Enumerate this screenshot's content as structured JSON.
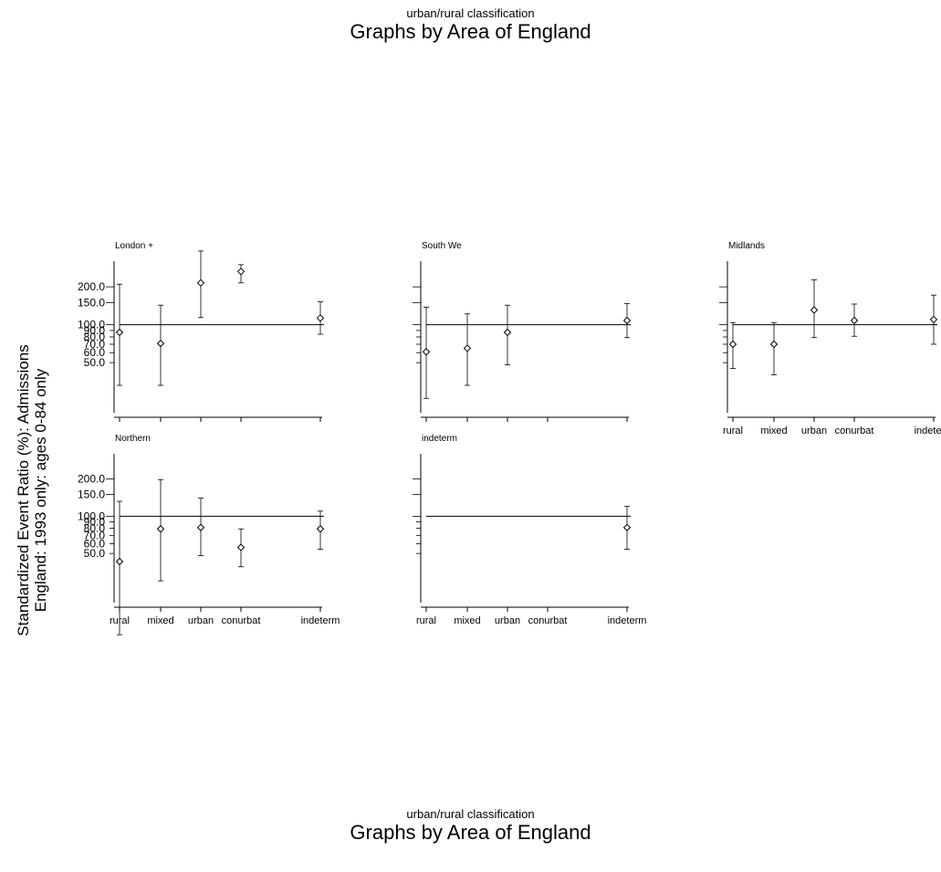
{
  "header": {
    "subtitle": "urban/rural classification",
    "title": "Graphs by Area of England"
  },
  "footer": {
    "subtitle": "urban/rural classification",
    "title": "Graphs by Area of England"
  },
  "y_axis": {
    "line1": "Standardized Event Ratio (%): Admissions",
    "line2": "England: 1993 only: ages 0-84 only"
  },
  "chart_data": {
    "type": "scatter",
    "subtype": "point-with-error-bars",
    "log_scale_y": true,
    "reference_line": 100,
    "ylim": [
      20,
      320
    ],
    "categories": [
      "rural",
      "mixed",
      "urban",
      "conurbat",
      "indeterm"
    ],
    "y_tick_labels": [
      "200.0",
      "150.0",
      "100.0",
      "90.0",
      "80.0",
      "70.0",
      "60.0",
      "50.0"
    ],
    "y_tick_values": [
      200,
      150,
      100,
      90,
      80,
      70,
      60,
      50
    ],
    "panels": [
      {
        "name": "London +",
        "points": [
          {
            "category": "rural",
            "value": 87,
            "low": 33,
            "high": 210
          },
          {
            "category": "mixed",
            "value": 71,
            "low": 33,
            "high": 143
          },
          {
            "category": "urban",
            "value": 215,
            "low": 114,
            "high": 385
          },
          {
            "category": "conurbat",
            "value": 265,
            "low": 215,
            "high": 300
          },
          {
            "category": "indeterm",
            "value": 113,
            "low": 84,
            "high": 152
          }
        ]
      },
      {
        "name": "South We",
        "points": [
          {
            "category": "rural",
            "value": 61,
            "low": 26,
            "high": 138
          },
          {
            "category": "mixed",
            "value": 65,
            "low": 33,
            "high": 122
          },
          {
            "category": "urban",
            "value": 87,
            "low": 48,
            "high": 143
          },
          {
            "category": "indeterm",
            "value": 108,
            "low": 79,
            "high": 147
          }
        ]
      },
      {
        "name": "Midlands",
        "points": [
          {
            "category": "rural",
            "value": 70,
            "low": 45,
            "high": 104
          },
          {
            "category": "mixed",
            "value": 70,
            "low": 40,
            "high": 104
          },
          {
            "category": "urban",
            "value": 131,
            "low": 79,
            "high": 227
          },
          {
            "category": "conurbat",
            "value": 108,
            "low": 81,
            "high": 146
          },
          {
            "category": "indeterm",
            "value": 110,
            "low": 70,
            "high": 172
          }
        ]
      },
      {
        "name": "Northern",
        "points": [
          {
            "category": "rural",
            "value": 43,
            "low": 11,
            "high": 132
          },
          {
            "category": "mixed",
            "value": 79,
            "low": 30,
            "high": 198
          },
          {
            "category": "urban",
            "value": 81,
            "low": 48,
            "high": 140
          },
          {
            "category": "conurbat",
            "value": 56,
            "low": 39,
            "high": 79
          },
          {
            "category": "indeterm",
            "value": 79,
            "low": 54,
            "high": 110
          }
        ]
      },
      {
        "name": "indeterm",
        "points": [
          {
            "category": "indeterm",
            "value": 81,
            "low": 54,
            "high": 120
          }
        ]
      }
    ]
  }
}
